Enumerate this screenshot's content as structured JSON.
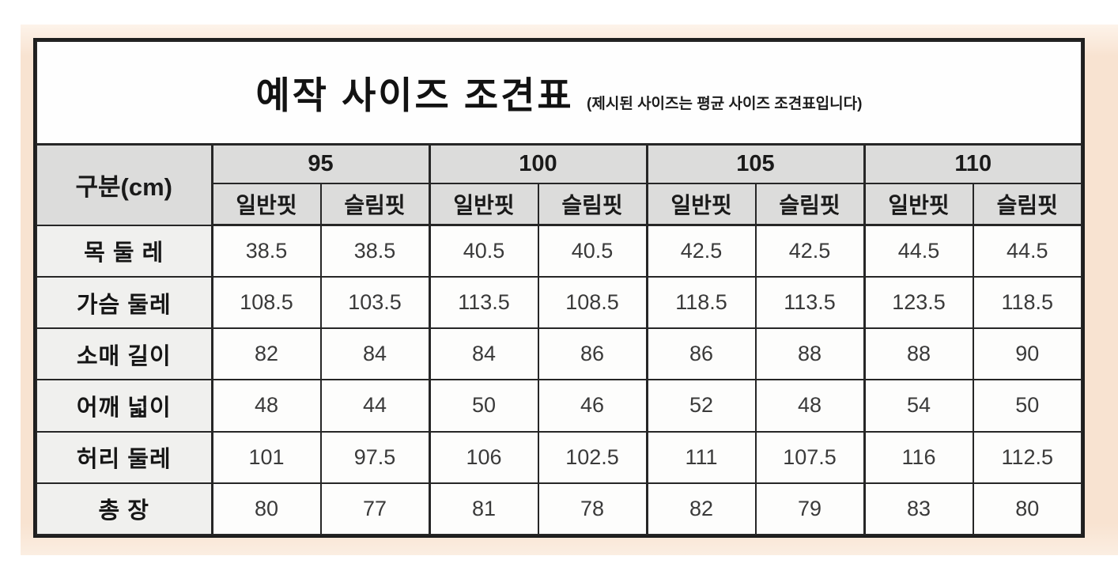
{
  "page": {
    "background_color": "#f8e3d1",
    "table_background": "#fdfdfc",
    "border_color": "#1e1e1e",
    "header_bg_color": "#dcdcdb",
    "row_label_bg_color": "#f0f0ee"
  },
  "title": {
    "text": "예작 사이즈 조견표",
    "note": "(제시된 사이즈는 평균 사이즈 조견표입니다)"
  },
  "size_chart": {
    "unit_header": "구분(cm)",
    "sizes": [
      "95",
      "100",
      "105",
      "110"
    ],
    "fit_labels": [
      "일반핏",
      "슬림핏"
    ],
    "rows": [
      {
        "label": "목 둘 레",
        "values": [
          "38.5",
          "38.5",
          "40.5",
          "40.5",
          "42.5",
          "42.5",
          "44.5",
          "44.5"
        ]
      },
      {
        "label": "가슴 둘레",
        "values": [
          "108.5",
          "103.5",
          "113.5",
          "108.5",
          "118.5",
          "113.5",
          "123.5",
          "118.5"
        ]
      },
      {
        "label": "소매 길이",
        "values": [
          "82",
          "84",
          "84",
          "86",
          "86",
          "88",
          "88",
          "90"
        ]
      },
      {
        "label": "어깨 넓이",
        "values": [
          "48",
          "44",
          "50",
          "46",
          "52",
          "48",
          "54",
          "50"
        ]
      },
      {
        "label": "허리 둘레",
        "values": [
          "101",
          "97.5",
          "106",
          "102.5",
          "111",
          "107.5",
          "116",
          "112.5"
        ]
      },
      {
        "label": "총 장",
        "values": [
          "80",
          "77",
          "81",
          "78",
          "82",
          "79",
          "83",
          "80"
        ]
      }
    ]
  }
}
